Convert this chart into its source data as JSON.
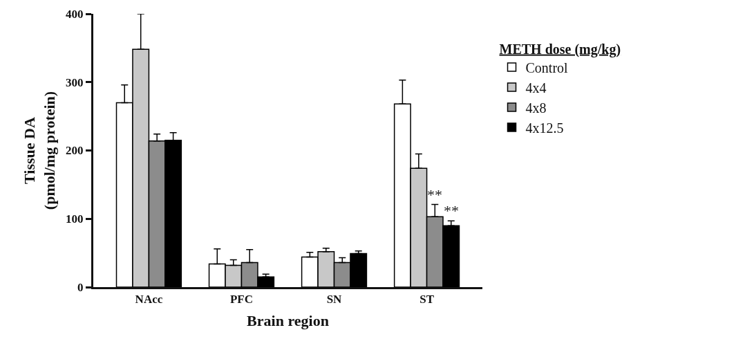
{
  "chart_data": {
    "type": "bar",
    "xlabel": "Brain region",
    "ylabel": "Tissue DA\n(pmol/mg protein)",
    "legend_title": "METH dose (mg/kg)",
    "legend": "top right",
    "grid": false,
    "categories": [
      "NAcc",
      "PFC",
      "SN",
      "ST"
    ],
    "ylim": [
      0,
      400
    ],
    "yticks": [
      0,
      100,
      200,
      300,
      400
    ],
    "series": [
      {
        "name": "Control",
        "color": "#ffffff",
        "values": [
          270,
          34,
          44,
          268
        ],
        "errors": [
          26,
          22,
          7,
          35
        ]
      },
      {
        "name": "4x4",
        "color": "#c8c8c8",
        "values": [
          348,
          32,
          52,
          174
        ],
        "errors": [
          52,
          8,
          5,
          21
        ]
      },
      {
        "name": "4x8",
        "color": "#8c8c8c",
        "values": [
          214,
          36,
          36,
          103
        ],
        "errors": [
          10,
          19,
          7,
          18
        ]
      },
      {
        "name": "4x12.5",
        "color": "#000000",
        "values": [
          215,
          15,
          49,
          90
        ],
        "errors": [
          11,
          4,
          4,
          7
        ]
      }
    ],
    "annotations": [
      {
        "text": "**",
        "x": "ST",
        "y": 121
      },
      {
        "text": "**",
        "x": "ST",
        "y": 97
      }
    ]
  }
}
